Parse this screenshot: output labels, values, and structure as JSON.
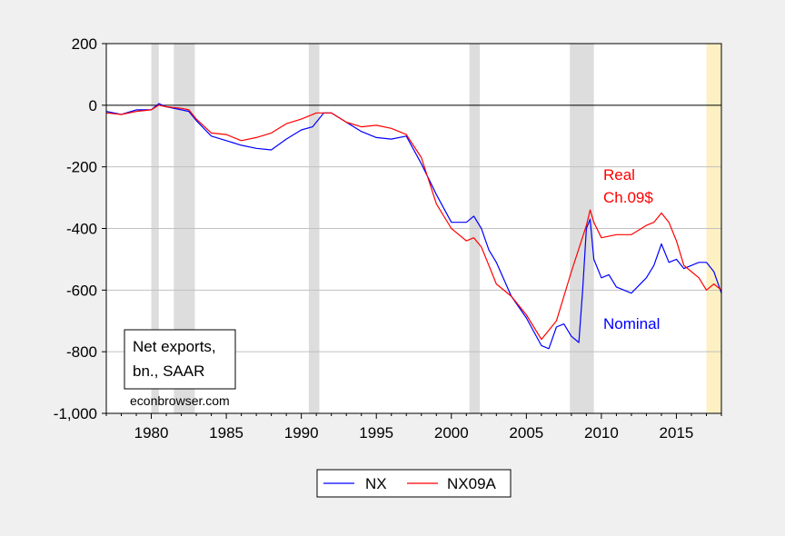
{
  "chart_data": {
    "type": "line",
    "title": "",
    "xlabel": "",
    "ylabel": "",
    "xlim": [
      1977.0,
      2018.0
    ],
    "ylim": [
      -1000,
      200
    ],
    "yticks": [
      200,
      0,
      -200,
      -400,
      -600,
      -800,
      -1000
    ],
    "ytick_labels": [
      "200",
      "0",
      "-200",
      "-400",
      "-600",
      "-800",
      "-1,000"
    ],
    "xticks": [
      1980,
      1985,
      1990,
      1995,
      2000,
      2005,
      2010,
      2015
    ],
    "xtick_labels": [
      "1980",
      "1985",
      "1990",
      "1995",
      "2000",
      "2005",
      "2010",
      "2015"
    ],
    "grid": true,
    "recessions": [
      [
        1980.0,
        1980.5
      ],
      [
        1981.5,
        1982.9
      ],
      [
        1990.5,
        1991.2
      ],
      [
        2001.2,
        2001.9
      ],
      [
        2007.9,
        2009.5
      ]
    ],
    "highlight_band": [
      2017.0,
      2018.0
    ],
    "series": [
      {
        "name": "NX",
        "color": "#0000ff",
        "x": [
          1977.0,
          1978.0,
          1979.0,
          1980.0,
          1980.5,
          1981.0,
          1982.0,
          1982.5,
          1983.0,
          1984.0,
          1985.0,
          1986.0,
          1987.0,
          1988.0,
          1989.0,
          1990.0,
          1990.75,
          1991.5,
          1992.0,
          1993.0,
          1994.0,
          1995.0,
          1996.0,
          1997.0,
          1998.0,
          1999.0,
          2000.0,
          2001.0,
          2001.5,
          2002.0,
          2002.5,
          2003.0,
          2004.0,
          2005.0,
          2006.0,
          2006.5,
          2007.0,
          2007.5,
          2008.0,
          2008.5,
          2008.75,
          2009.0,
          2009.25,
          2009.5,
          2010.0,
          2010.5,
          2011.0,
          2012.0,
          2013.0,
          2013.5,
          2014.0,
          2014.5,
          2015.0,
          2015.5,
          2016.0,
          2016.5,
          2017.0,
          2017.5,
          2018.0
        ],
        "values": [
          -20,
          -30,
          -15,
          -15,
          5,
          -5,
          -15,
          -20,
          -50,
          -100,
          -115,
          -130,
          -140,
          -145,
          -110,
          -80,
          -70,
          -25,
          -25,
          -55,
          -85,
          -105,
          -110,
          -100,
          -190,
          -290,
          -380,
          -380,
          -360,
          -400,
          -470,
          -510,
          -620,
          -690,
          -780,
          -790,
          -720,
          -710,
          -750,
          -770,
          -600,
          -400,
          -370,
          -500,
          -560,
          -550,
          -590,
          -610,
          -560,
          -520,
          -450,
          -510,
          -500,
          -530,
          -520,
          -510,
          -510,
          -540,
          -610
        ]
      },
      {
        "name": "NX09A",
        "color": "#ff0000",
        "x": [
          1977.0,
          1978.0,
          1979.0,
          1980.0,
          1980.5,
          1981.0,
          1982.0,
          1982.5,
          1983.0,
          1984.0,
          1985.0,
          1986.0,
          1987.0,
          1988.0,
          1989.0,
          1990.0,
          1991.0,
          1992.0,
          1993.0,
          1994.0,
          1995.0,
          1996.0,
          1997.0,
          1998.0,
          1999.0,
          2000.0,
          2001.0,
          2001.5,
          2002.0,
          2002.5,
          2003.0,
          2004.0,
          2005.0,
          2006.0,
          2007.0,
          2008.0,
          2009.0,
          2009.25,
          2009.5,
          2010.0,
          2011.0,
          2012.0,
          2013.0,
          2013.5,
          2014.0,
          2014.5,
          2015.0,
          2015.5,
          2016.0,
          2016.5,
          2017.0,
          2017.5,
          2018.0
        ],
        "values": [
          -25,
          -30,
          -20,
          -15,
          0,
          -5,
          -10,
          -15,
          -45,
          -90,
          -95,
          -115,
          -105,
          -90,
          -60,
          -45,
          -25,
          -25,
          -55,
          -70,
          -65,
          -75,
          -95,
          -170,
          -320,
          -400,
          -440,
          -430,
          -460,
          -520,
          -580,
          -620,
          -680,
          -760,
          -700,
          -540,
          -390,
          -340,
          -380,
          -430,
          -420,
          -420,
          -390,
          -380,
          -350,
          -380,
          -440,
          -520,
          -540,
          -560,
          -600,
          -580,
          -600
        ]
      }
    ],
    "legend": {
      "placement": "bottom-center",
      "entries": [
        "NX",
        "NX09A"
      ]
    },
    "annotations": {
      "real_label": "Real",
      "real_label_2": "Ch.09$",
      "nominal_label": "Nominal",
      "box_line1": "Net exports,",
      "box_line2": "bn., SAAR",
      "source": "econbrowser.com"
    }
  }
}
